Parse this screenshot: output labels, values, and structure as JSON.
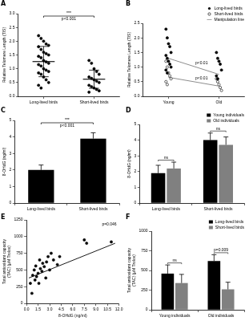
{
  "chart_data": [
    {
      "panel": "A",
      "type": "strip",
      "categories": [
        "Long-lived birds",
        "Short-lived birds"
      ],
      "series": [
        {
          "color": "#000000",
          "marker": "circle",
          "points": [
            [
              2.2,
              2.1,
              2.0,
              1.9,
              1.85,
              1.8,
              1.7,
              1.6,
              1.55,
              1.5,
              1.45,
              1.4,
              1.3,
              1.25,
              1.2,
              1.15,
              1.1,
              1.0,
              0.95,
              0.9,
              0.85,
              0.8,
              0.7,
              0.6,
              0.5,
              0.4,
              0.3
            ],
            [
              1.3,
              1.2,
              1.0,
              0.9,
              0.8,
              0.7,
              0.65,
              0.6,
              0.55,
              0.5,
              0.4,
              0.35,
              0.3,
              0.25,
              0.2,
              0.15
            ]
          ],
          "means": [
            1.26,
            0.62
          ],
          "errors": [
            0.55,
            0.33
          ]
        }
      ],
      "y_label": "Relative Telomere Length (T/S)",
      "ylim": [
        0,
        3
      ],
      "yticks": [
        {
          "value": 0,
          "label": "0.0"
        },
        0.5,
        {
          "value": 1,
          "label": "1.0"
        },
        1.5,
        {
          "value": 2,
          "label": "2.0"
        },
        2.5,
        {
          "value": 3,
          "label": "3.0"
        }
      ],
      "grid": false,
      "comparison": {
        "stars": "***",
        "p": "p<0.001"
      }
    },
    {
      "panel": "B",
      "type": "strip",
      "categories": [
        "Young",
        "Old"
      ],
      "series": [
        {
          "name": "Long-lived birds",
          "color": "#000000",
          "marker": "circle",
          "points": [
            [
              2.3,
              2.0,
              1.8,
              1.7,
              1.5,
              1.4,
              1.3,
              1.2,
              1.1,
              1.0,
              0.9,
              0.8
            ],
            [
              1.5,
              1.3,
              1.2,
              1.1,
              0.9,
              0.7,
              0.6
            ]
          ]
        },
        {
          "name": "Short-lived birds",
          "color": "#000000",
          "marker": "circle-open",
          "points": [
            [
              1.2,
              1.0,
              0.8,
              0.7,
              0.6,
              0.5,
              0.4
            ],
            [
              0.6,
              0.5,
              0.4,
              0.3,
              0.2
            ]
          ]
        },
        {
          "name": "Manipulation line",
          "type": "line",
          "color": "#808080",
          "line_style": "solid",
          "lines": [
            [
              1.3,
              0.75
            ],
            [
              0.65,
              0.35
            ]
          ],
          "line_labels": [
            "p<0.01",
            "p<0.01"
          ]
        }
      ],
      "y_label": "Relative Telomere Length (T/S)",
      "ylim": [
        0,
        2.5
      ],
      "yticks": [
        {
          "value": 0,
          "label": "0.0"
        },
        0.5,
        {
          "value": 1,
          "label": "1.0"
        },
        1.5,
        {
          "value": 2,
          "label": "2.0"
        },
        2.5
      ],
      "grid": false,
      "legend": "top-right"
    },
    {
      "panel": "C",
      "type": "bar",
      "categories": [
        "Long-lived birds",
        "Short-lived birds"
      ],
      "series": [
        {
          "color": "#000000",
          "values": [
            2.0,
            3.9
          ],
          "errors": [
            0.3,
            0.35
          ]
        }
      ],
      "y_label": "8-OHdG (ng/ml)",
      "ylim": [
        0,
        5
      ],
      "yticks": [
        0,
        1,
        2,
        3,
        4,
        5
      ],
      "grid": false,
      "comparison": {
        "stars": "***",
        "p": "p<0.001"
      }
    },
    {
      "panel": "D",
      "type": "bar",
      "categories": [
        "Long-lived birds",
        "Short-lived birds"
      ],
      "series": [
        {
          "name": "Young individuals",
          "color": "#000000",
          "values": [
            1.9,
            4.0
          ],
          "errors": [
            0.5,
            0.45
          ]
        },
        {
          "name": "Old individuals",
          "color": "#808080",
          "values": [
            2.2,
            3.7
          ],
          "errors": [
            0.4,
            0.5
          ]
        }
      ],
      "y_label": "8-OHdG (ng/ml)",
      "ylim": [
        0,
        5
      ],
      "yticks": [
        0,
        1,
        2,
        3,
        4,
        5
      ],
      "grid": false,
      "group_labels": [
        "ns",
        "ns"
      ],
      "legend": "top-right"
    },
    {
      "panel": "E",
      "type": "scatter",
      "x_label": "8-OHdG (ng/ml)",
      "y_label": "Total antioxidant capacity (TAC) (μM Trolox)",
      "series": [
        {
          "type": "scatter",
          "color": "#000000",
          "marker": "circle",
          "x": [
            0.5,
            0.7,
            0.8,
            1.0,
            1.1,
            1.2,
            1.3,
            1.5,
            1.6,
            1.7,
            1.8,
            2.0,
            2.1,
            2.3,
            2.5,
            2.6,
            2.8,
            3.0,
            3.2,
            3.5,
            4.0,
            4.3,
            7.5,
            7.8,
            11.0
          ],
          "values": [
            300,
            150,
            420,
            500,
            350,
            560,
            400,
            450,
            300,
            650,
            520,
            480,
            600,
            550,
            380,
            620,
            700,
            500,
            750,
            650,
            580,
            700,
            950,
            900,
            920
          ]
        },
        {
          "type": "line",
          "color": "#000000",
          "line_style": "solid",
          "x": [
            0.3,
            11.5
          ],
          "values": [
            380,
            900
          ]
        }
      ],
      "xlim": [
        0,
        12
      ],
      "xticks": [
        {
          "value": 0,
          "label": "0.0"
        },
        1.5,
        {
          "value": 3,
          "label": "3.0"
        },
        4.5,
        {
          "value": 6,
          "label": "6.0"
        },
        7.5,
        {
          "value": 9,
          "label": "9.0"
        },
        10.5,
        {
          "value": 12,
          "label": "12.0"
        }
      ],
      "ylim": [
        0,
        1250
      ],
      "yticks": [
        0,
        250,
        500,
        750,
        1000,
        1250
      ],
      "grid": false,
      "annotation": "p=0.046"
    },
    {
      "panel": "F",
      "type": "bar",
      "categories": [
        "Young individuals",
        "Old individuals"
      ],
      "series": [
        {
          "name": "Long-lived birds",
          "color": "#000000",
          "values": [
            460,
            620
          ],
          "errors": [
            110,
            80
          ]
        },
        {
          "name": "Short-lived birds",
          "color": "#808080",
          "values": [
            340,
            260
          ],
          "errors": [
            110,
            90
          ]
        }
      ],
      "y_label": "Total antioxidant capacity (TAC) (μM Trolox)",
      "ylim": [
        0,
        1000
      ],
      "yticks": [
        0,
        250,
        500,
        750,
        1000
      ],
      "grid": false,
      "group_labels": [
        "ns",
        "p=0.009"
      ],
      "legend": "top-right"
    }
  ]
}
